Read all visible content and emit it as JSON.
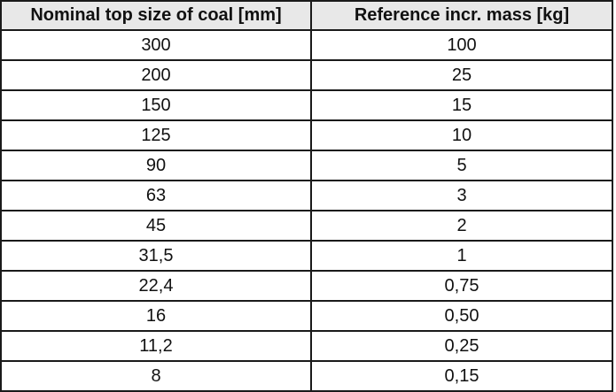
{
  "table": {
    "header": [
      "Nominal top size of coal [mm]",
      "Reference incr. mass [kg]"
    ],
    "rows": [
      [
        "300",
        "100"
      ],
      [
        "200",
        "25"
      ],
      [
        "150",
        "15"
      ],
      [
        "125",
        "10"
      ],
      [
        "90",
        "5"
      ],
      [
        "63",
        "3"
      ],
      [
        "45",
        "2"
      ],
      [
        "31,5",
        "1"
      ],
      [
        "22,4",
        "0,75"
      ],
      [
        "16",
        "0,50"
      ],
      [
        "11,2",
        "0,25"
      ],
      [
        "8",
        "0,15"
      ]
    ]
  }
}
